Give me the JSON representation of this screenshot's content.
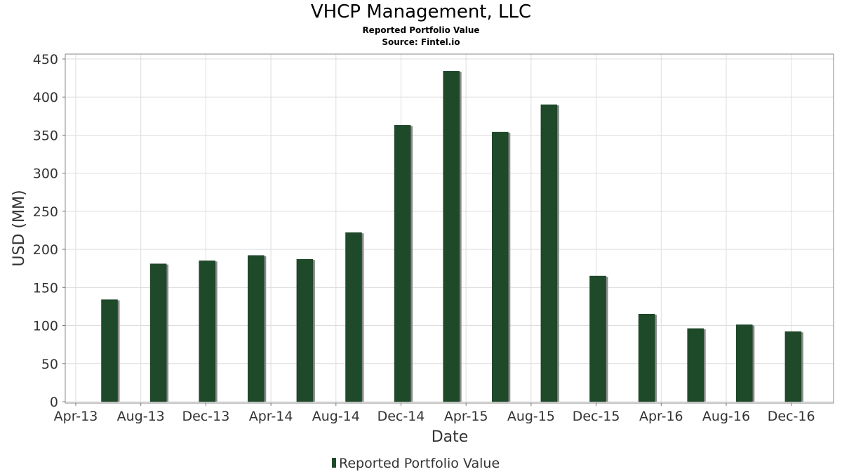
{
  "chart_data": {
    "type": "bar",
    "title": "VHCP Management, LLC",
    "subtitle": "Reported Portfolio Value",
    "source": "Source: Fintel.io",
    "xlabel": "Date",
    "ylabel": "USD (MM)",
    "ylim": [
      0,
      450
    ],
    "yticks": [
      0,
      50,
      100,
      150,
      200,
      250,
      300,
      350,
      400,
      450
    ],
    "xticks": [
      "Apr-13",
      "Aug-13",
      "Dec-13",
      "Apr-14",
      "Aug-14",
      "Dec-14",
      "Apr-15",
      "Aug-15",
      "Dec-15",
      "Apr-16",
      "Aug-16",
      "Dec-16"
    ],
    "categories": [
      "Jun-13",
      "Sep-13",
      "Dec-13",
      "Mar-14",
      "Jun-14",
      "Sep-14",
      "Dec-14",
      "Mar-15",
      "Jun-15",
      "Sep-15",
      "Dec-15",
      "Mar-16",
      "Jun-16",
      "Sep-16",
      "Dec-16"
    ],
    "series": [
      {
        "name": "Reported Portfolio Value",
        "values": [
          134,
          181,
          185,
          192,
          187,
          222,
          363,
          434,
          354,
          390,
          165,
          115,
          96,
          101,
          92
        ]
      }
    ],
    "grid": true,
    "legend": "bottom-center",
    "colors": {
      "bar": "#1e4a2a",
      "bar_shadow": "#8a8a8a",
      "grid": "#dddddd",
      "axis": "#777777"
    }
  }
}
